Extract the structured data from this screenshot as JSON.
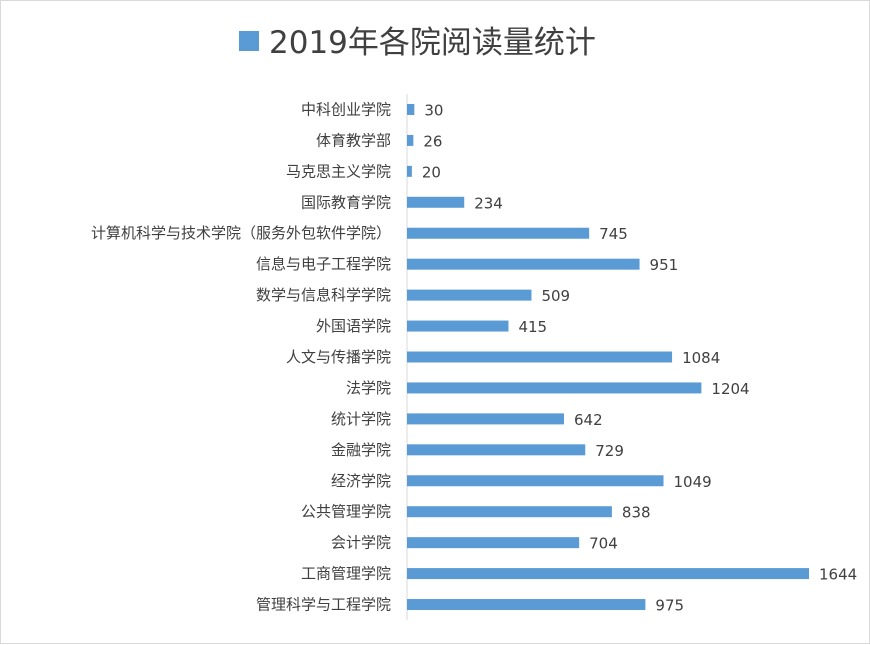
{
  "chart_data": {
    "type": "bar",
    "orientation": "horizontal",
    "title": "2019年各院阅读量统计",
    "legend_position": "title-left",
    "grid": false,
    "bar_color": "#5b9bd5",
    "text_color": "#404040",
    "axis_color": "#d9d9d9",
    "xlim": [
      0,
      1644
    ],
    "categories": [
      "中科创业学院",
      "体育教学部",
      "马克思主义学院",
      "国际教育学院",
      "计算机科学与技术学院（服务外包软件学院）",
      "信息与电子工程学院",
      "数学与信息科学学院",
      "外国语学院",
      "人文与传播学院",
      "法学院",
      "统计学院",
      "金融学院",
      "经济学院",
      "公共管理学院",
      "会计学院",
      "工商管理学院",
      "管理科学与工程学院"
    ],
    "values": [
      30,
      26,
      20,
      234,
      745,
      951,
      509,
      415,
      1084,
      1204,
      642,
      729,
      1049,
      838,
      704,
      1644,
      975
    ]
  }
}
